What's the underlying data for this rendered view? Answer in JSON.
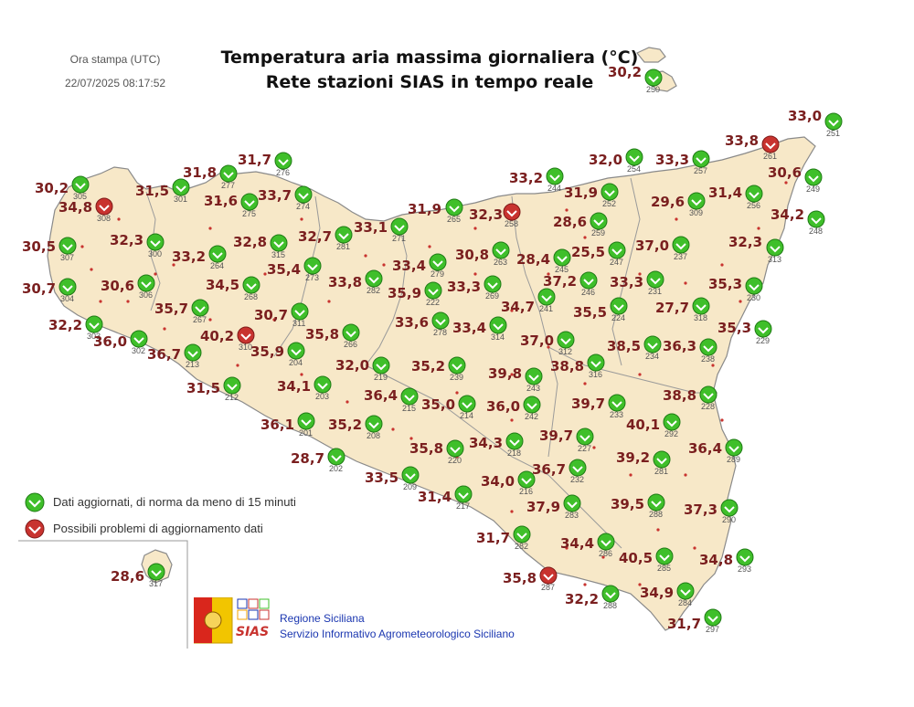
{
  "header": {
    "print_label": "Ora stampa (UTC)",
    "print_time": "22/07/2025 08:17:52",
    "title_line1": "Temperatura aria massima giornaliera (°C)",
    "title_line2": "Rete stazioni SIAS in tempo reale"
  },
  "colors": {
    "land": "#f7e8c8",
    "border": "#8a8a8a",
    "ok_marker": "#3fbf2a",
    "problem_marker": "#c8332f",
    "value_text": "#7a1f1f"
  },
  "legend": {
    "ok": "Dati aggiornati, di norma da meno di 15 minuti",
    "problem": "Possibili problemi di aggiornamento dati"
  },
  "credits": {
    "line1": "Regione Siciliana",
    "line2": "Servizio Informativo Agrometeorologico Siciliano",
    "logo_text": "SIAS"
  },
  "stations": [
    {
      "id": "250",
      "value": "30,2",
      "status": "ok"
    },
    {
      "id": "251",
      "value": "33,0",
      "status": "ok"
    },
    {
      "id": "261",
      "value": "33,8",
      "status": "problem"
    },
    {
      "id": "249",
      "value": "30,6",
      "status": "ok"
    },
    {
      "id": "248",
      "value": "34,2",
      "status": "ok"
    },
    {
      "id": "313",
      "value": "32,3",
      "status": "ok"
    },
    {
      "id": "230",
      "value": "35,3",
      "status": "ok"
    },
    {
      "id": "229",
      "value": "35,3",
      "status": "ok"
    },
    {
      "id": "254",
      "value": "32,0",
      "status": "ok"
    },
    {
      "id": "257",
      "value": "33,3",
      "status": "ok"
    },
    {
      "id": "244",
      "value": "33,2",
      "status": "ok"
    },
    {
      "id": "252",
      "value": "31,9",
      "status": "ok"
    },
    {
      "id": "309",
      "value": "29,6",
      "status": "ok"
    },
    {
      "id": "256",
      "value": "31,4",
      "status": "ok"
    },
    {
      "id": "259",
      "value": "28,6",
      "status": "ok"
    },
    {
      "id": "258",
      "value": "32,3",
      "status": "problem"
    },
    {
      "id": "265",
      "value": "31,9",
      "status": "ok"
    },
    {
      "id": "271",
      "value": "33,1",
      "status": "ok"
    },
    {
      "id": "281",
      "value": "32,7",
      "status": "ok"
    },
    {
      "id": "276",
      "value": "31,7",
      "status": "ok"
    },
    {
      "id": "277",
      "value": "31,8",
      "status": "ok"
    },
    {
      "id": "274",
      "value": "33,7",
      "status": "ok"
    },
    {
      "id": "275",
      "value": "31,6",
      "status": "ok"
    },
    {
      "id": "301",
      "value": "31,5",
      "status": "ok"
    },
    {
      "id": "308",
      "value": "34,8",
      "status": "problem"
    },
    {
      "id": "305",
      "value": "30,2",
      "status": "ok"
    },
    {
      "id": "307",
      "value": "30,5",
      "status": "ok"
    },
    {
      "id": "300",
      "value": "32,3",
      "status": "ok"
    },
    {
      "id": "315",
      "value": "32,8",
      "status": "ok"
    },
    {
      "id": "264",
      "value": "33,2",
      "status": "ok"
    },
    {
      "id": "304",
      "value": "30,7",
      "status": "ok"
    },
    {
      "id": "306",
      "value": "30,6",
      "status": "ok"
    },
    {
      "id": "268",
      "value": "34,5",
      "status": "ok"
    },
    {
      "id": "273",
      "value": "35,4",
      "status": "ok"
    },
    {
      "id": "279",
      "value": "33,4",
      "status": "ok"
    },
    {
      "id": "263",
      "value": "30,8",
      "status": "ok"
    },
    {
      "id": "245",
      "value": "28,4",
      "status": "ok"
    },
    {
      "id": "247",
      "value": "25,5",
      "status": "ok"
    },
    {
      "id": "237",
      "value": "37,0",
      "status": "ok"
    },
    {
      "id": "246",
      "value": "37,2",
      "status": "ok"
    },
    {
      "id": "231",
      "value": "33,3",
      "status": "ok"
    },
    {
      "id": "282",
      "value": "33,8",
      "status": "ok"
    },
    {
      "id": "222",
      "value": "35,9",
      "status": "ok"
    },
    {
      "id": "269",
      "value": "33,3",
      "status": "ok"
    },
    {
      "id": "241",
      "value": "34,7",
      "status": "ok"
    },
    {
      "id": "224",
      "value": "35,5",
      "status": "ok"
    },
    {
      "id": "318",
      "value": "27,7",
      "status": "ok"
    },
    {
      "id": "267",
      "value": "35,7",
      "status": "ok"
    },
    {
      "id": "311",
      "value": "30,7",
      "status": "ok"
    },
    {
      "id": "278",
      "value": "33,6",
      "status": "ok"
    },
    {
      "id": "314",
      "value": "33,4",
      "status": "ok"
    },
    {
      "id": "303",
      "value": "32,2",
      "status": "ok"
    },
    {
      "id": "302",
      "value": "36,0",
      "status": "ok"
    },
    {
      "id": "310",
      "value": "40,2",
      "status": "problem"
    },
    {
      "id": "266",
      "value": "35,8",
      "status": "ok"
    },
    {
      "id": "312",
      "value": "37,0",
      "status": "ok"
    },
    {
      "id": "234",
      "value": "38,5",
      "status": "ok"
    },
    {
      "id": "238",
      "value": "36,3",
      "status": "ok"
    },
    {
      "id": "213",
      "value": "36,7",
      "status": "ok"
    },
    {
      "id": "204",
      "value": "35,9",
      "status": "ok"
    },
    {
      "id": "219",
      "value": "32,0",
      "status": "ok"
    },
    {
      "id": "239",
      "value": "35,2",
      "status": "ok"
    },
    {
      "id": "243",
      "value": "39,8",
      "status": "ok"
    },
    {
      "id": "316",
      "value": "38,8",
      "status": "ok"
    },
    {
      "id": "212",
      "value": "31,5",
      "status": "ok"
    },
    {
      "id": "203",
      "value": "34,1",
      "status": "ok"
    },
    {
      "id": "215",
      "value": "36,4",
      "status": "ok"
    },
    {
      "id": "214",
      "value": "35,0",
      "status": "ok"
    },
    {
      "id": "242",
      "value": "36,0",
      "status": "ok"
    },
    {
      "id": "233",
      "value": "39,7",
      "status": "ok"
    },
    {
      "id": "228",
      "value": "38,8",
      "status": "ok"
    },
    {
      "id": "201",
      "value": "36,1",
      "status": "ok"
    },
    {
      "id": "208",
      "value": "35,2",
      "status": "ok"
    },
    {
      "id": "292",
      "value": "40,1",
      "status": "ok"
    },
    {
      "id": "218",
      "value": "34,3",
      "status": "ok"
    },
    {
      "id": "227",
      "value": "39,7",
      "status": "ok"
    },
    {
      "id": "202",
      "value": "28,7",
      "status": "ok"
    },
    {
      "id": "220",
      "value": "35,8",
      "status": "ok"
    },
    {
      "id": "289",
      "value": "36,4",
      "status": "ok"
    },
    {
      "id": "281b",
      "label": "281",
      "value": "39,2",
      "status": "ok"
    },
    {
      "id": "209",
      "value": "33,5",
      "status": "ok"
    },
    {
      "id": "232",
      "value": "36,7",
      "status": "ok"
    },
    {
      "id": "216",
      "value": "34,0",
      "status": "ok"
    },
    {
      "id": "217",
      "value": "31,4",
      "status": "ok"
    },
    {
      "id": "283",
      "value": "37,9",
      "status": "ok"
    },
    {
      "id": "288",
      "value": "39,5",
      "status": "ok"
    },
    {
      "id": "290",
      "value": "37,3",
      "status": "ok"
    },
    {
      "id": "282b",
      "label": "282",
      "value": "31,7",
      "status": "ok"
    },
    {
      "id": "286",
      "value": "34,4",
      "status": "ok"
    },
    {
      "id": "285",
      "value": "40,5",
      "status": "ok"
    },
    {
      "id": "293",
      "value": "34,8",
      "status": "ok"
    },
    {
      "id": "287",
      "value": "35,8",
      "status": "problem"
    },
    {
      "id": "284",
      "value": "34,9",
      "status": "ok"
    },
    {
      "id": "288b",
      "label": "288",
      "value": "32,2",
      "status": "ok"
    },
    {
      "id": "297",
      "value": "31,7",
      "status": "ok"
    },
    {
      "id": "317",
      "value": "28,6",
      "status": "ok"
    }
  ]
}
